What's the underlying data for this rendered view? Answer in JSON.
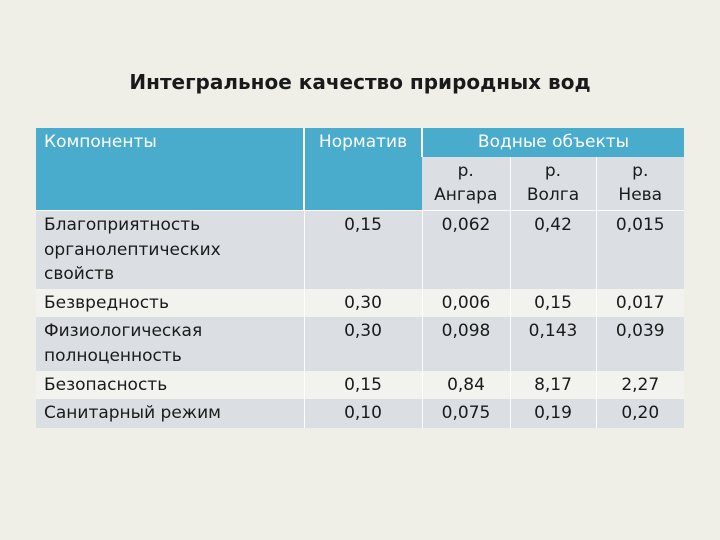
{
  "title": "Интегральное качество природных вод",
  "table": {
    "headers": {
      "components": "Компоненты",
      "norm": "Норматив",
      "water_objects": "Водные объекты"
    },
    "objects": [
      {
        "line1": "р.",
        "line2": "Ангара"
      },
      {
        "line1": "р.",
        "line2": "Волга"
      },
      {
        "line1": "р.",
        "line2": "Нева"
      }
    ],
    "rows": [
      {
        "component": [
          "Благоприятность",
          "органолептических",
          "свойств"
        ],
        "norm": "0,15",
        "angara": "0,062",
        "volga": "0,42",
        "neva": "0,015"
      },
      {
        "component": [
          "Безвредность"
        ],
        "norm": "0,30",
        "angara": "0,006",
        "volga": "0,15",
        "neva": "0,017"
      },
      {
        "component": [
          "Физиологическая",
          "полноценность"
        ],
        "norm": "0,30",
        "angara": "0,098",
        "volga": "0,143",
        "neva": "0,039"
      },
      {
        "component": [
          "Безопасность"
        ],
        "norm": "0,15",
        "angara": "0,84",
        "volga": "8,17",
        "neva": "2,27"
      },
      {
        "component": [
          "Санитарный режим"
        ],
        "norm": "0,10",
        "angara": "0,075",
        "volga": "0,19",
        "neva": "0,20"
      }
    ]
  }
}
